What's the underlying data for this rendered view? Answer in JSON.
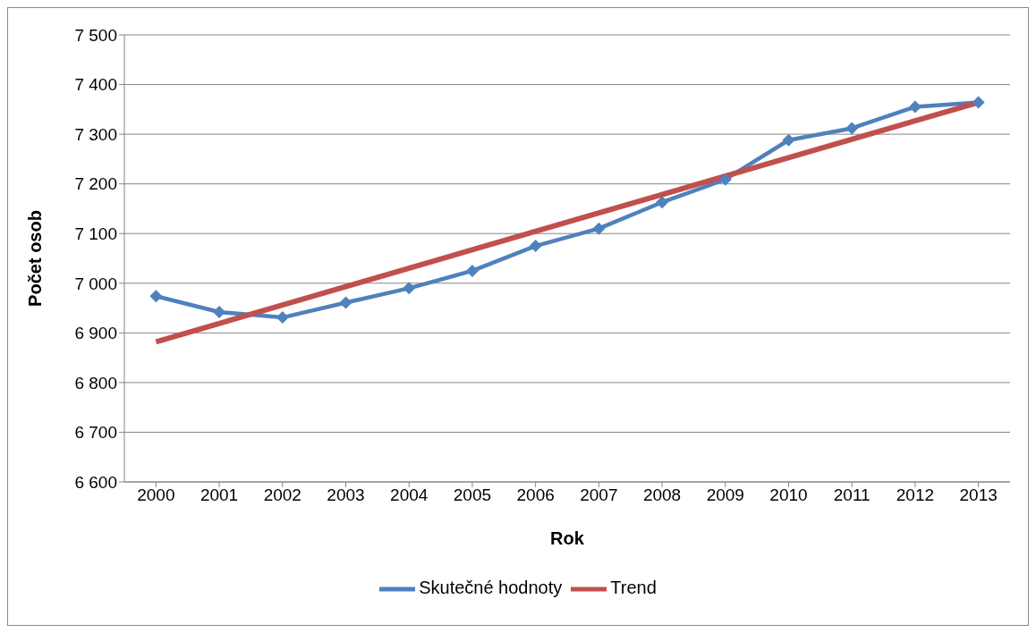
{
  "chart_data": {
    "type": "line",
    "xlabel": "Rok",
    "ylabel": "Počet osob",
    "categories": [
      "2000",
      "2001",
      "2002",
      "2003",
      "2004",
      "2005",
      "2006",
      "2007",
      "2008",
      "2009",
      "2010",
      "2011",
      "2012",
      "2013"
    ],
    "series": [
      {
        "name": "Skutečné hodnoty",
        "color": "#4f81bd",
        "marker": "diamond",
        "values": [
          6974,
          6942,
          6931,
          6961,
          6990,
          7025,
          7075,
          7110,
          7163,
          7209,
          7288,
          7312,
          7355,
          7364
        ]
      },
      {
        "name": "Trend",
        "color": "#c0504d",
        "marker": "none",
        "values": [
          6882,
          null,
          null,
          null,
          null,
          null,
          null,
          null,
          null,
          null,
          null,
          null,
          null,
          7364
        ]
      }
    ],
    "ylim": [
      6600,
      7500
    ],
    "yticks": [
      {
        "value": 6600,
        "label": "6 600"
      },
      {
        "value": 6700,
        "label": "6 700"
      },
      {
        "value": 6800,
        "label": "6 800"
      },
      {
        "value": 6900,
        "label": "6 900"
      },
      {
        "value": 7000,
        "label": "7 000"
      },
      {
        "value": 7100,
        "label": "7 100"
      },
      {
        "value": 7200,
        "label": "7 200"
      },
      {
        "value": 7300,
        "label": "7 300"
      },
      {
        "value": 7400,
        "label": "7 400"
      },
      {
        "value": 7500,
        "label": "7 500"
      }
    ],
    "grid": "y",
    "legend": "bottom"
  }
}
